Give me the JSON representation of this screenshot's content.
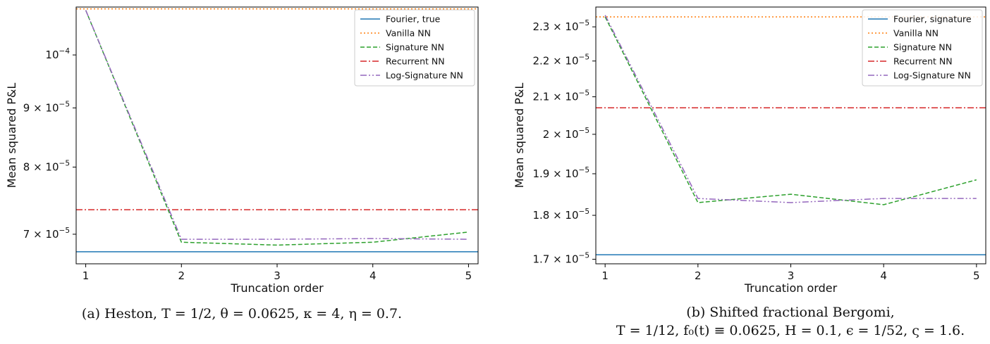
{
  "chart_data": [
    {
      "type": "line",
      "xlabel": "Truncation order",
      "ylabel": "Mean squared P&L",
      "xlim": [
        0.9,
        5.1
      ],
      "ylim": [
        6.6e-05,
        0.00011
      ],
      "log_y": true,
      "grid": false,
      "legend_position": "top-right",
      "x_ticks": [
        1,
        2,
        3,
        4,
        5
      ],
      "x_tick_labels": [
        "1",
        "2",
        "3",
        "4",
        "5"
      ],
      "y_ticks": [
        7e-05,
        8e-05,
        9e-05,
        0.0001
      ],
      "y_tick_labels": [
        {
          "base": "7 × 10",
          "exp": "−5"
        },
        {
          "base": "8 × 10",
          "exp": "−5"
        },
        {
          "base": "9 × 10",
          "exp": "−5"
        },
        {
          "base": "10",
          "exp": "−4"
        }
      ],
      "caption": [
        "(a) Heston, T = 1/2, θ = 0.0625, κ = 4, η = 0.7."
      ],
      "series": [
        {
          "name": "Fourier, true",
          "color": "#1f77b4",
          "dash": "solid",
          "x": [
            0.9,
            5.1
          ],
          "values": [
            6.76e-05,
            6.76e-05
          ]
        },
        {
          "name": "Vanilla NN",
          "color": "#ff7f0e",
          "dash": "dotted",
          "x": [
            0.9,
            5.1
          ],
          "values": [
            0.0001096,
            0.0001096
          ]
        },
        {
          "name": "Signature NN",
          "color": "#2ca02c",
          "dash": "dashed",
          "x": [
            1,
            2,
            3,
            4,
            5
          ],
          "values": [
            0.0001093,
            6.89e-05,
            6.85e-05,
            6.89e-05,
            7.03e-05
          ]
        },
        {
          "name": "Recurrent NN",
          "color": "#d62728",
          "dash": "dashdot",
          "x": [
            0.9,
            5.1
          ],
          "values": [
            7.35e-05,
            7.35e-05
          ]
        },
        {
          "name": "Log-Signature NN",
          "color": "#9467bd",
          "dash": "dashdotdot",
          "x": [
            1,
            2,
            3,
            4,
            5
          ],
          "values": [
            0.0001093,
            6.93e-05,
            6.93e-05,
            6.94e-05,
            6.93e-05
          ]
        }
      ]
    },
    {
      "type": "line",
      "xlabel": "Truncation order",
      "ylabel": "Mean squared P&L",
      "xlim": [
        0.9,
        5.1
      ],
      "ylim": [
        1.69e-05,
        2.36e-05
      ],
      "log_y": true,
      "grid": false,
      "legend_position": "top-right",
      "x_ticks": [
        1,
        2,
        3,
        4,
        5
      ],
      "x_tick_labels": [
        "1",
        "2",
        "3",
        "4",
        "5"
      ],
      "y_ticks": [
        1.7e-05,
        1.8e-05,
        1.9e-05,
        2e-05,
        2.1e-05,
        2.2e-05,
        2.3e-05
      ],
      "y_tick_labels": [
        {
          "base": "1.7 × 10",
          "exp": "−5"
        },
        {
          "base": "1.8 × 10",
          "exp": "−5"
        },
        {
          "base": "1.9 × 10",
          "exp": "−5"
        },
        {
          "base": "2 × 10",
          "exp": "−5"
        },
        {
          "base": "2.1 × 10",
          "exp": "−5"
        },
        {
          "base": "2.2 × 10",
          "exp": "−5"
        },
        {
          "base": "2.3 × 10",
          "exp": "−5"
        }
      ],
      "caption": [
        "(b) Shifted fractional Bergomi,",
        "T = 1/12, f₀(t) ≡ 0.0625, H = 0.1, ϵ = 1/52, ς = 1.6."
      ],
      "series": [
        {
          "name": "Fourier, signature",
          "color": "#1f77b4",
          "dash": "solid",
          "x": [
            0.9,
            5.1
          ],
          "values": [
            1.71e-05,
            1.71e-05
          ]
        },
        {
          "name": "Vanilla NN",
          "color": "#ff7f0e",
          "dash": "dotted",
          "x": [
            0.9,
            5.1
          ],
          "values": [
            2.33e-05,
            2.33e-05
          ]
        },
        {
          "name": "Signature NN",
          "color": "#2ca02c",
          "dash": "dashed",
          "x": [
            1,
            2,
            3,
            4,
            5
          ],
          "values": [
            2.33e-05,
            1.83e-05,
            1.85e-05,
            1.825e-05,
            1.885e-05
          ]
        },
        {
          "name": "Recurrent NN",
          "color": "#d62728",
          "dash": "dashdot",
          "x": [
            0.9,
            5.1
          ],
          "values": [
            2.07e-05,
            2.07e-05
          ]
        },
        {
          "name": "Log-Signature NN",
          "color": "#9467bd",
          "dash": "dashdotdot",
          "x": [
            1,
            2,
            3,
            4,
            5
          ],
          "values": [
            2.335e-05,
            1.84e-05,
            1.83e-05,
            1.84e-05,
            1.84e-05
          ]
        }
      ]
    }
  ]
}
